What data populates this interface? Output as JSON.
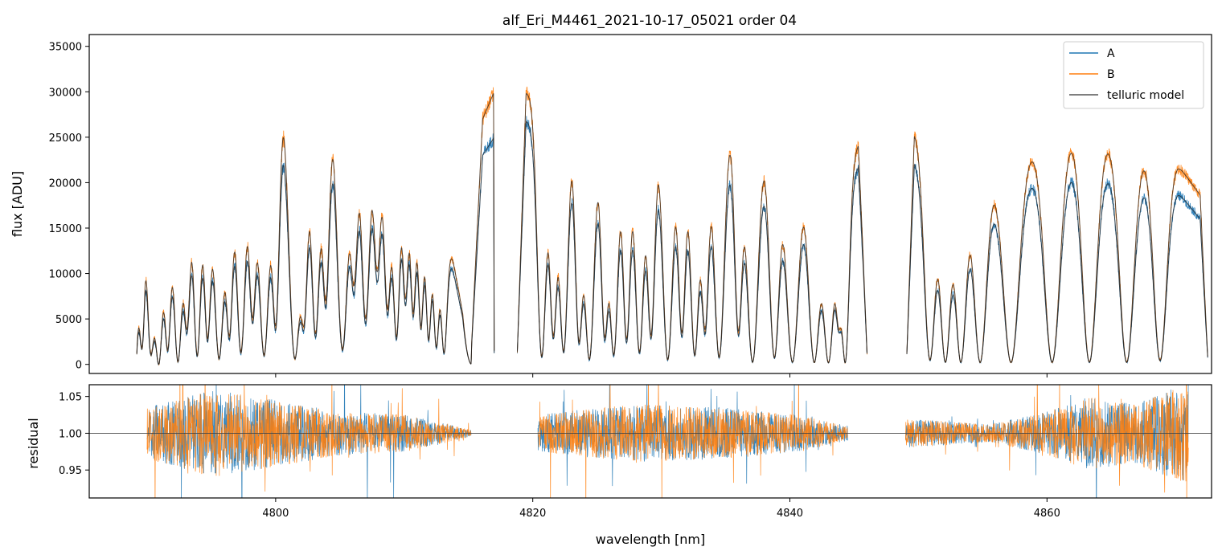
{
  "chart_data": {
    "type": "line",
    "title": "alf_Eri_M4461_2021-10-17_05021  order 04",
    "xlabel": "wavelength [nm]",
    "xlim": [
      4785.5,
      4872.8
    ],
    "xticks": [
      4800,
      4820,
      4840,
      4860
    ],
    "xtick_labels": [
      "4800",
      "4820",
      "4840",
      "4860"
    ],
    "colors": {
      "A": "#1f77b4",
      "B": "#ff7f0e",
      "telluric": "#555555",
      "hline": "#444444"
    },
    "legend": {
      "placement": "top-right",
      "entries": [
        "A",
        "B",
        "telluric model"
      ]
    },
    "top_panel": {
      "ylabel": "flux [ADU]",
      "ylim": [
        -1000,
        36300
      ],
      "yticks": [
        0,
        5000,
        10000,
        15000,
        20000,
        25000,
        30000,
        35000
      ],
      "ytick_labels": [
        "0",
        "5000",
        "10000",
        "15000",
        "20000",
        "25000",
        "30000",
        "35000"
      ],
      "segments": [
        {
          "x0": 4789.2,
          "x1": 4815.2,
          "envA": [
            [
              0,
              29500
            ],
            [
              0.15,
              30500
            ],
            [
              0.3,
              31000
            ],
            [
              0.5,
              30800
            ],
            [
              0.7,
              30000
            ],
            [
              0.85,
              28000
            ],
            [
              1.0,
              500
            ]
          ],
          "envB": [
            [
              0,
              33500
            ],
            [
              0.15,
              35200
            ],
            [
              0.3,
              35500
            ],
            [
              0.5,
              35000
            ],
            [
              0.7,
              34000
            ],
            [
              0.85,
              31000
            ],
            [
              1.0,
              500
            ]
          ]
        },
        {
          "x0": 4815.2,
          "x1": 4817.0,
          "envA": [
            [
              0,
              1000
            ],
            [
              0.5,
              23000
            ],
            [
              1.0,
              25000
            ]
          ],
          "envB": [
            [
              0,
              1000
            ],
            [
              0.5,
              27000
            ],
            [
              1.0,
              30000
            ]
          ]
        },
        {
          "x0": 4818.8,
          "x1": 4846.0,
          "envA": [
            [
              0,
              27000
            ],
            [
              0.3,
              24500
            ],
            [
              0.6,
              24000
            ],
            [
              0.78,
              22500
            ],
            [
              0.9,
              16500
            ],
            [
              1.0,
              23500
            ]
          ],
          "envB": [
            [
              0,
              30000
            ],
            [
              0.3,
              28500
            ],
            [
              0.6,
              28000
            ],
            [
              0.78,
              26000
            ],
            [
              0.9,
              18500
            ],
            [
              1.0,
              26000
            ]
          ]
        },
        {
          "x0": 4849.1,
          "x1": 4872.5,
          "envA": [
            [
              0,
              22500
            ],
            [
              0.1,
              23000
            ],
            [
              0.3,
              18500
            ],
            [
              0.5,
              22000
            ],
            [
              0.7,
              21000
            ],
            [
              0.9,
              19000
            ],
            [
              1.0,
              15000
            ]
          ],
          "envB": [
            [
              0,
              25500
            ],
            [
              0.1,
              26500
            ],
            [
              0.3,
              21000
            ],
            [
              0.5,
              25500
            ],
            [
              0.7,
              24500
            ],
            [
              0.9,
              22000
            ],
            [
              1.0,
              17500
            ]
          ]
        }
      ],
      "absorption_lines": [
        [
          4789.6,
          0.9,
          0.25
        ],
        [
          4790.3,
          0.95,
          0.35
        ],
        [
          4790.9,
          1.0,
          0.4
        ],
        [
          4791.6,
          0.93,
          0.3
        ],
        [
          4792.4,
          0.99,
          0.4
        ],
        [
          4793.1,
          0.85,
          0.3
        ],
        [
          4793.9,
          0.97,
          0.35
        ],
        [
          4794.7,
          0.9,
          0.3
        ],
        [
          4795.6,
          0.98,
          0.45
        ],
        [
          4796.4,
          0.88,
          0.3
        ],
        [
          4797.3,
          0.96,
          0.4
        ],
        [
          4798.2,
          0.82,
          0.3
        ],
        [
          4799.1,
          0.97,
          0.45
        ],
        [
          4800.0,
          0.86,
          0.3
        ],
        [
          4801.5,
          0.98,
          0.5
        ],
        [
          4802.2,
          0.8,
          0.3
        ],
        [
          4803.1,
          0.9,
          0.35
        ],
        [
          4803.9,
          0.78,
          0.3
        ],
        [
          4805.2,
          0.95,
          0.45
        ],
        [
          4806.1,
          0.7,
          0.3
        ],
        [
          4807.0,
          0.85,
          0.35
        ],
        [
          4807.9,
          0.68,
          0.3
        ],
        [
          4808.7,
          0.8,
          0.3
        ],
        [
          4809.4,
          0.9,
          0.3
        ],
        [
          4810.1,
          0.75,
          0.25
        ],
        [
          4810.7,
          0.8,
          0.25
        ],
        [
          4811.3,
          0.85,
          0.25
        ],
        [
          4811.9,
          0.88,
          0.25
        ],
        [
          4812.5,
          0.9,
          0.25
        ],
        [
          4813.1,
          0.92,
          0.25
        ],
        [
          4820.7,
          0.97,
          0.35
        ],
        [
          4821.6,
          0.88,
          0.3
        ],
        [
          4822.4,
          0.95,
          0.35
        ],
        [
          4823.6,
          0.9,
          0.3
        ],
        [
          4824.4,
          0.98,
          0.4
        ],
        [
          4825.6,
          0.88,
          0.3
        ],
        [
          4826.3,
          0.96,
          0.35
        ],
        [
          4827.3,
          0.9,
          0.3
        ],
        [
          4828.3,
          0.95,
          0.35
        ],
        [
          4829.2,
          0.88,
          0.3
        ],
        [
          4830.5,
          0.98,
          0.4
        ],
        [
          4831.6,
          0.87,
          0.3
        ],
        [
          4832.6,
          0.96,
          0.35
        ],
        [
          4833.4,
          0.85,
          0.3
        ],
        [
          4834.5,
          0.97,
          0.4
        ],
        [
          4836.0,
          0.86,
          0.3
        ],
        [
          4837.1,
          0.99,
          0.45
        ],
        [
          4838.8,
          0.97,
          0.4
        ],
        [
          4840.2,
          0.99,
          0.5
        ],
        [
          4841.9,
          0.99,
          0.45
        ],
        [
          4843.0,
          0.99,
          0.4
        ],
        [
          4843.8,
          0.7,
          0.25
        ],
        [
          4844.3,
          0.99,
          0.3
        ],
        [
          4850.9,
          0.98,
          0.45
        ],
        [
          4852.1,
          0.99,
          0.45
        ],
        [
          4853.3,
          0.99,
          0.45
        ],
        [
          4854.8,
          0.99,
          0.5
        ],
        [
          4857.2,
          0.99,
          0.6
        ],
        [
          4860.4,
          0.99,
          0.6
        ],
        [
          4863.3,
          0.99,
          0.55
        ],
        [
          4866.2,
          0.99,
          0.55
        ],
        [
          4868.8,
          0.98,
          0.5
        ]
      ]
    },
    "bottom_panel": {
      "ylabel": "residual",
      "ylim": [
        0.912,
        1.066
      ],
      "yticks": [
        0.95,
        1.0,
        1.05
      ],
      "ytick_labels": [
        "0.95",
        "1.00",
        "1.05"
      ],
      "reference_line": 1.0,
      "segments": [
        {
          "x0": 4790.0,
          "x1": 4815.2,
          "amp": [
            [
              0,
              0.035
            ],
            [
              0.2,
              0.06
            ],
            [
              0.4,
              0.045
            ],
            [
              0.6,
              0.03
            ],
            [
              0.8,
              0.025
            ],
            [
              1.0,
              0.005
            ]
          ]
        },
        {
          "x0": 4820.4,
          "x1": 4844.5,
          "amp": [
            [
              0,
              0.025
            ],
            [
              0.3,
              0.04
            ],
            [
              0.6,
              0.035
            ],
            [
              0.85,
              0.025
            ],
            [
              1.0,
              0.01
            ]
          ]
        },
        {
          "x0": 4849.0,
          "x1": 4871.0,
          "amp": [
            [
              0,
              0.02
            ],
            [
              0.3,
              0.012
            ],
            [
              0.5,
              0.03
            ],
            [
              0.65,
              0.05
            ],
            [
              0.8,
              0.04
            ],
            [
              1.0,
              0.07
            ]
          ]
        }
      ]
    }
  }
}
